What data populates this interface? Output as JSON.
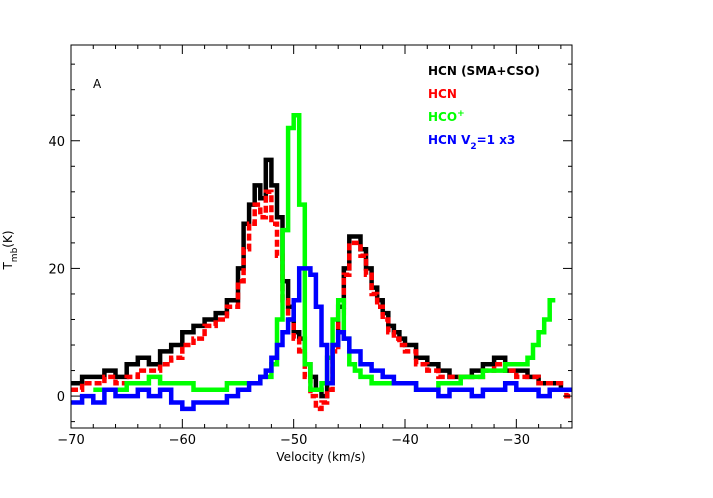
{
  "chart_data": {
    "type": "line",
    "step": true,
    "panel_label": "A",
    "xlabel": "Velocity (km/s)",
    "ylabel": {
      "main": "T",
      "sub": "mb",
      "unit": "(K)"
    },
    "xlim": [
      -70,
      -25
    ],
    "ylim": [
      -5,
      55
    ],
    "xticks": [
      -70,
      -60,
      -50,
      -40,
      -30
    ],
    "xtick_labels": [
      "−70",
      "−60",
      "−50",
      "−40",
      "−30"
    ],
    "yticks": [
      0,
      20,
      40
    ],
    "ytick_labels": [
      "0",
      "20",
      "40"
    ],
    "legend_position": "top-right",
    "series": [
      {
        "name": "HCN (SMA+CSO)",
        "label_parts": [
          {
            "t": "HCN (SMA+CSO)",
            "s": "normal"
          }
        ],
        "color": "#000000",
        "dash": false,
        "x": [
          -70,
          -69,
          -68,
          -67,
          -66,
          -65,
          -64,
          -63,
          -62,
          -61,
          -60,
          -59,
          -58,
          -57,
          -56,
          -55,
          -54.5,
          -54,
          -53.5,
          -53,
          -52.5,
          -52,
          -51.5,
          -51,
          -50.5,
          -50,
          -49.5,
          -49,
          -48.5,
          -48,
          -47.5,
          -47,
          -46.5,
          -46,
          -45.5,
          -45,
          -44.5,
          -44,
          -43.5,
          -43,
          -42.5,
          -42,
          -41.5,
          -41,
          -40.5,
          -40,
          -39,
          -38,
          -37,
          -36,
          -35,
          -34,
          -33,
          -32,
          -31,
          -30,
          -29,
          -28,
          -27,
          -26,
          -25.5
        ],
        "y": [
          2,
          3,
          3,
          4,
          3,
          5,
          6,
          5,
          7,
          8,
          10,
          11,
          12,
          13,
          15,
          20,
          27,
          30,
          33,
          31,
          37,
          33,
          28,
          18,
          14,
          10,
          9,
          5,
          3,
          1,
          0,
          2,
          8,
          14,
          20,
          25,
          25,
          23,
          20,
          17,
          15,
          13,
          11,
          10,
          9,
          8,
          6,
          5,
          4,
          3,
          3,
          4,
          5,
          6,
          4,
          4,
          3,
          2,
          2,
          1,
          1
        ]
      },
      {
        "name": "HCN",
        "label_parts": [
          {
            "t": "HCN",
            "s": "normal"
          }
        ],
        "color": "#ff0000",
        "dash": true,
        "x": [
          -70,
          -69,
          -68,
          -67,
          -66,
          -65,
          -64,
          -63,
          -62,
          -61,
          -60,
          -59,
          -58,
          -57,
          -56,
          -55,
          -54.5,
          -54,
          -53.5,
          -53,
          -52.5,
          -52,
          -51.5,
          -51,
          -50.5,
          -50,
          -49.5,
          -49,
          -48.5,
          -48,
          -47.5,
          -47,
          -46.5,
          -46,
          -45.5,
          -45,
          -44.5,
          -44,
          -43.5,
          -43,
          -42.5,
          -42,
          -41.5,
          -41,
          -40.5,
          -40,
          -39,
          -38,
          -37,
          -36,
          -35,
          -34,
          -33,
          -32,
          -31,
          -30,
          -29,
          -28,
          -27,
          -26,
          -25.5
        ],
        "y": [
          1,
          2,
          2,
          3,
          2,
          3,
          4,
          4,
          5,
          6,
          8,
          9,
          11,
          12,
          14,
          18,
          23,
          27,
          30,
          28,
          32,
          27,
          22,
          15,
          12,
          9,
          7,
          3,
          0,
          -2,
          -1,
          1,
          7,
          13,
          19,
          24,
          24,
          22,
          19,
          16,
          14,
          12,
          10,
          9,
          8,
          7,
          5,
          4,
          3,
          3,
          3,
          3,
          4,
          5,
          4,
          3,
          3,
          2,
          2,
          1,
          0
        ]
      },
      {
        "name": "HCO+",
        "label_parts": [
          {
            "t": "HCO",
            "s": "normal"
          },
          {
            "t": "+",
            "s": "sup"
          }
        ],
        "color": "#00ff00",
        "dash": false,
        "x": [
          -68,
          -67,
          -66,
          -65,
          -64,
          -63,
          -62,
          -61,
          -60,
          -59,
          -58,
          -57,
          -56,
          -55,
          -54,
          -53,
          -52,
          -51.5,
          -51,
          -50.5,
          -50,
          -49.5,
          -49,
          -48.5,
          -48,
          -47.5,
          -47,
          -46.5,
          -46,
          -45.5,
          -45,
          -44.5,
          -44,
          -43.5,
          -43,
          -42,
          -41,
          -40,
          -39,
          -38,
          -37,
          -36,
          -35,
          -34,
          -33,
          -32,
          -31,
          -30,
          -29,
          -28.5,
          -28,
          -27.5,
          -27
        ],
        "y": [
          1,
          1,
          1,
          2,
          2,
          3,
          2,
          2,
          2,
          1,
          1,
          1,
          2,
          2,
          2,
          3,
          5,
          12,
          26,
          42,
          44,
          30,
          5,
          1,
          1,
          2,
          6,
          12,
          15,
          9,
          5,
          4,
          3,
          3,
          2,
          2,
          2,
          2,
          1,
          1,
          2,
          2,
          3,
          3,
          4,
          4,
          5,
          5,
          6,
          8,
          10,
          12,
          15
        ]
      },
      {
        "name": "HCN V2=1 x3",
        "label_parts": [
          {
            "t": "HCN V",
            "s": "normal"
          },
          {
            "t": "2",
            "s": "sub"
          },
          {
            "t": "=1 x3",
            "s": "normal"
          }
        ],
        "color": "#0000ff",
        "dash": false,
        "x": [
          -70,
          -69,
          -68,
          -67,
          -66,
          -65,
          -64,
          -63,
          -62,
          -61,
          -60,
          -59,
          -58,
          -57,
          -56,
          -55,
          -54,
          -53,
          -52.5,
          -52,
          -51.5,
          -51,
          -50.5,
          -50,
          -49.5,
          -49,
          -48.5,
          -48,
          -47.5,
          -47,
          -46.5,
          -46,
          -45.5,
          -45,
          -44,
          -43,
          -42,
          -41,
          -40,
          -39,
          -38,
          -37,
          -36,
          -35,
          -34,
          -33,
          -32,
          -31,
          -30,
          -29,
          -28,
          -27,
          -26,
          -25.5
        ],
        "y": [
          -1,
          0,
          -1,
          1,
          0,
          0,
          1,
          0,
          1,
          -1,
          -2,
          -1,
          -1,
          -1,
          0,
          1,
          2,
          3,
          4,
          6,
          8,
          10,
          12,
          15,
          20,
          20,
          19,
          14,
          8,
          2,
          8,
          10,
          9,
          7,
          5,
          4,
          3,
          2,
          2,
          1,
          1,
          0,
          1,
          1,
          0,
          1,
          1,
          2,
          1,
          1,
          0,
          1,
          1,
          1
        ]
      }
    ]
  }
}
